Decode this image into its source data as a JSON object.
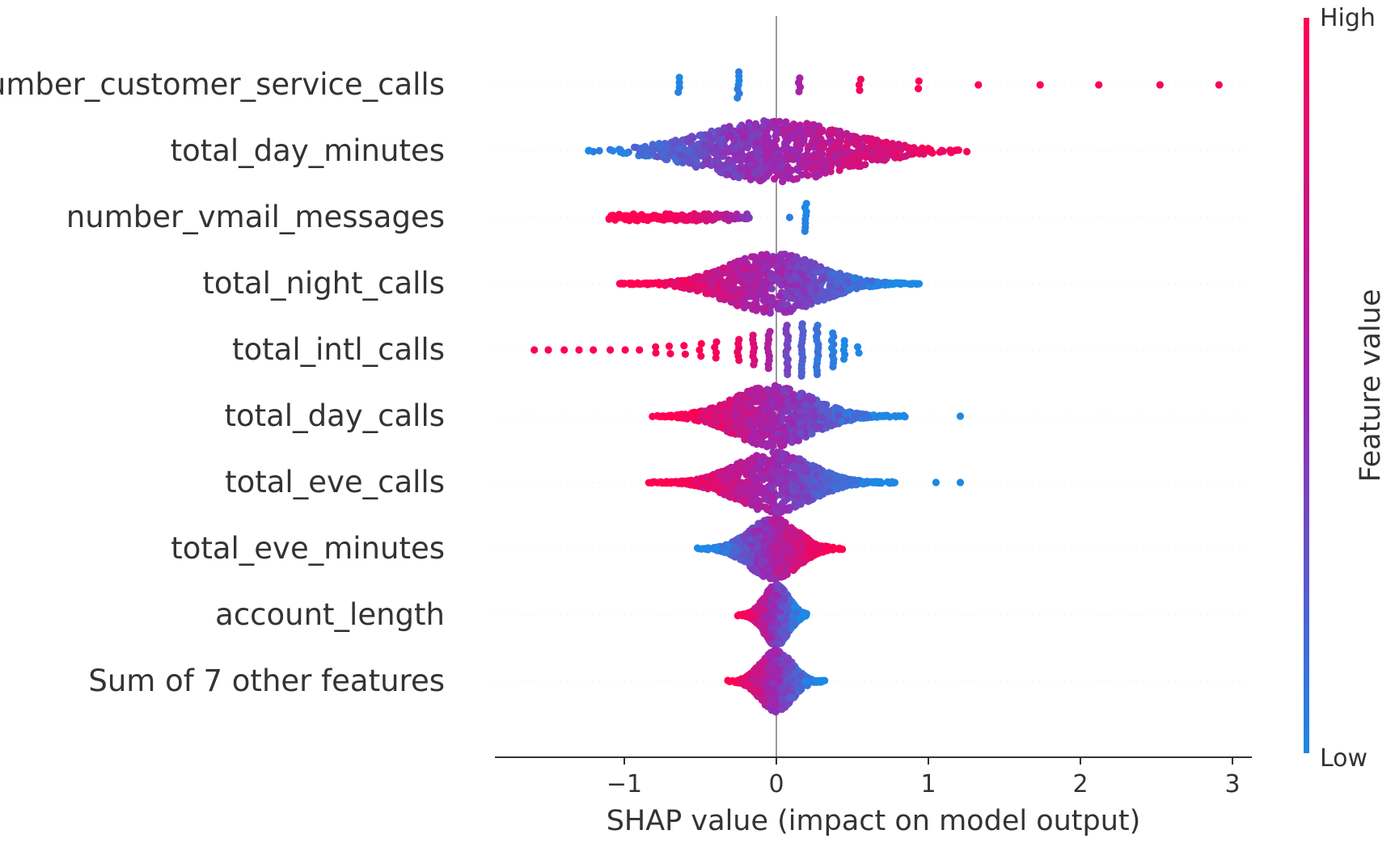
{
  "chart_data": {
    "type": "scatter",
    "subtype": "shap-beeswarm",
    "xlabel": "SHAP value (impact on model output)",
    "xlim": [
      -1.85,
      3.1
    ],
    "xticks": [
      {
        "value": -1,
        "label": "−1"
      },
      {
        "value": 0,
        "label": "0"
      },
      {
        "value": 1,
        "label": "1"
      },
      {
        "value": 2,
        "label": "2"
      },
      {
        "value": 3,
        "label": "3"
      }
    ],
    "colorbar": {
      "label": "Feature value",
      "high_label": "High",
      "low_label": "Low",
      "high_color": "#ff0052",
      "mid_color": "#9c27b0",
      "low_color": "#1e88e5"
    },
    "zero_line_color": "#999999",
    "features": [
      {
        "name": "number_customer_service_calls",
        "clusters": [
          {
            "x": -0.64,
            "spread": 0.24,
            "color": 0.0
          },
          {
            "x": -0.25,
            "spread": 0.42,
            "color": 0.05
          },
          {
            "x": 0.15,
            "spread": 0.22,
            "color": 0.55
          },
          {
            "x": 0.55,
            "spread": 0.18,
            "color": 0.95
          },
          {
            "x": 0.93,
            "spread": 0.12,
            "color": 1.0
          },
          {
            "x": 1.33,
            "spread": 0.08,
            "color": 1.0
          },
          {
            "x": 1.73,
            "spread": 0.06,
            "color": 1.0
          },
          {
            "x": 2.12,
            "spread": 0.06,
            "color": 1.0
          },
          {
            "x": 2.52,
            "spread": 0.06,
            "color": 1.0
          },
          {
            "x": 2.91,
            "spread": 0.06,
            "color": 1.0
          }
        ]
      },
      {
        "name": "total_day_minutes",
        "kind": "swarm",
        "min": -1.58,
        "max": 1.52,
        "peak": 0.0,
        "peak_width": 1.0,
        "color_dir": "low-left"
      },
      {
        "name": "number_vmail_messages",
        "clusters": [
          {
            "x": 0.19,
            "spread": 0.45,
            "color": 0.0
          },
          {
            "x": 0.08,
            "spread": 0.06,
            "color": 0.05
          }
        ],
        "band": {
          "min": -1.1,
          "max": -0.18,
          "spread": 0.12,
          "color": 1.0
        }
      },
      {
        "name": "total_night_calls",
        "kind": "swarm",
        "min": -1.03,
        "max": 0.95,
        "peak": -0.02,
        "peak_width": 0.9,
        "color_dir": "high-left",
        "outliers": [
          {
            "x": -1.03,
            "color": 1.0
          },
          {
            "x": -0.92,
            "color": 1.0
          },
          {
            "x": -0.88,
            "color": 1.0
          }
        ]
      },
      {
        "name": "total_intl_calls",
        "clusters": [
          {
            "x": -1.6,
            "spread": 0.05,
            "color": 1.0
          },
          {
            "x": -1.5,
            "spread": 0.05,
            "color": 1.0
          },
          {
            "x": -1.4,
            "spread": 0.05,
            "color": 1.0
          },
          {
            "x": -1.3,
            "spread": 0.05,
            "color": 1.0
          },
          {
            "x": -1.2,
            "spread": 0.06,
            "color": 1.0
          },
          {
            "x": -1.1,
            "spread": 0.06,
            "color": 1.0
          },
          {
            "x": -1.0,
            "spread": 0.07,
            "color": 1.0
          },
          {
            "x": -0.9,
            "spread": 0.08,
            "color": 1.0
          },
          {
            "x": -0.8,
            "spread": 0.1,
            "color": 1.0
          },
          {
            "x": -0.7,
            "spread": 0.12,
            "color": 1.0
          },
          {
            "x": -0.6,
            "spread": 0.14,
            "color": 1.0
          },
          {
            "x": -0.5,
            "spread": 0.2,
            "color": 1.0
          },
          {
            "x": -0.4,
            "spread": 0.26,
            "color": 0.95
          },
          {
            "x": -0.25,
            "spread": 0.34,
            "color": 0.9
          },
          {
            "x": -0.15,
            "spread": 0.48,
            "color": 0.8
          },
          {
            "x": -0.05,
            "spread": 0.6,
            "color": 0.6
          },
          {
            "x": 0.07,
            "spread": 0.8,
            "color": 0.35
          },
          {
            "x": 0.17,
            "spread": 0.85,
            "color": 0.2
          },
          {
            "x": 0.27,
            "spread": 0.8,
            "color": 0.1
          },
          {
            "x": 0.37,
            "spread": 0.55,
            "color": 0.05
          },
          {
            "x": 0.45,
            "spread": 0.3,
            "color": 0.0
          },
          {
            "x": 0.54,
            "spread": 0.1,
            "color": 0.0
          }
        ]
      },
      {
        "name": "total_day_calls",
        "kind": "swarm",
        "min": -0.82,
        "max": 0.85,
        "peak": -0.02,
        "peak_width": 0.75,
        "color_dir": "high-left",
        "outliers": [
          {
            "x": 1.21,
            "color": 0.0
          }
        ]
      },
      {
        "name": "total_eve_calls",
        "kind": "swarm",
        "min": -0.84,
        "max": 0.78,
        "peak": -0.02,
        "peak_width": 0.75,
        "color_dir": "high-left",
        "outliers": [
          {
            "x": 1.05,
            "color": 0.0
          },
          {
            "x": 1.21,
            "color": 0.0
          }
        ]
      },
      {
        "name": "total_eve_minutes",
        "kind": "swarm",
        "min": -0.55,
        "max": 0.44,
        "peak": -0.02,
        "peak_width": 0.4,
        "color_dir": "low-left"
      },
      {
        "name": "account_length",
        "kind": "swarm",
        "min": -0.27,
        "max": 0.2,
        "peak": 0.0,
        "peak_width": 0.2,
        "color_dir": "high-left"
      },
      {
        "name": "Sum of 7 other features",
        "kind": "swarm",
        "min": -0.35,
        "max": 0.32,
        "peak": 0.0,
        "peak_width": 0.25,
        "color_dir": "high-left"
      }
    ]
  }
}
